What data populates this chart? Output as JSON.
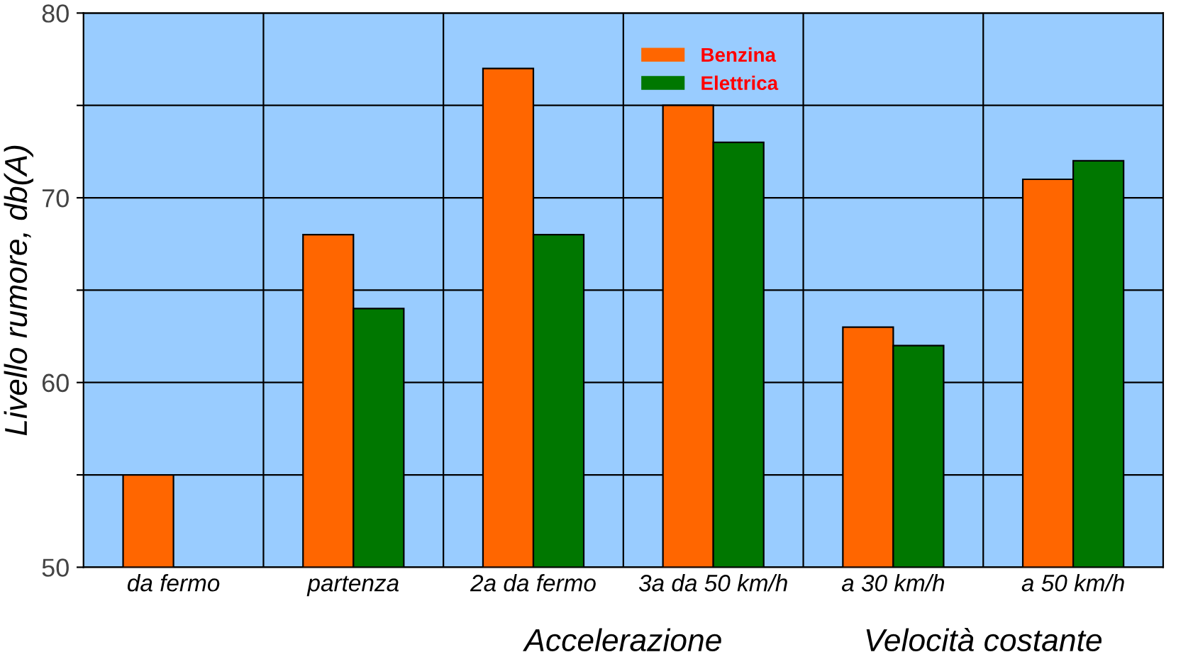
{
  "chart_data": {
    "type": "bar",
    "ylabel": "Livello rumore, db(A)",
    "categories": [
      "da fermo",
      "partenza",
      "2a da fermo",
      "3a da 50 km/h",
      "a 30 km/h",
      "a 50 km/h"
    ],
    "series": [
      {
        "name": "Benzina",
        "color": "#ff6600",
        "values": [
          55,
          68,
          77,
          75,
          63,
          71
        ]
      },
      {
        "name": "Elettrica",
        "color": "#007700",
        "values": [
          null,
          64,
          68,
          73,
          62,
          72
        ]
      }
    ],
    "ylim": [
      50,
      80
    ],
    "yticks": [
      50,
      {
        "value": 55,
        "label": null
      },
      60,
      {
        "value": 65,
        "label": null
      },
      70,
      {
        "value": 75,
        "label": null
      },
      80
    ],
    "grid": true,
    "legend": "top",
    "annotations": [
      "Accelerazione",
      "Velocità costante"
    ]
  }
}
